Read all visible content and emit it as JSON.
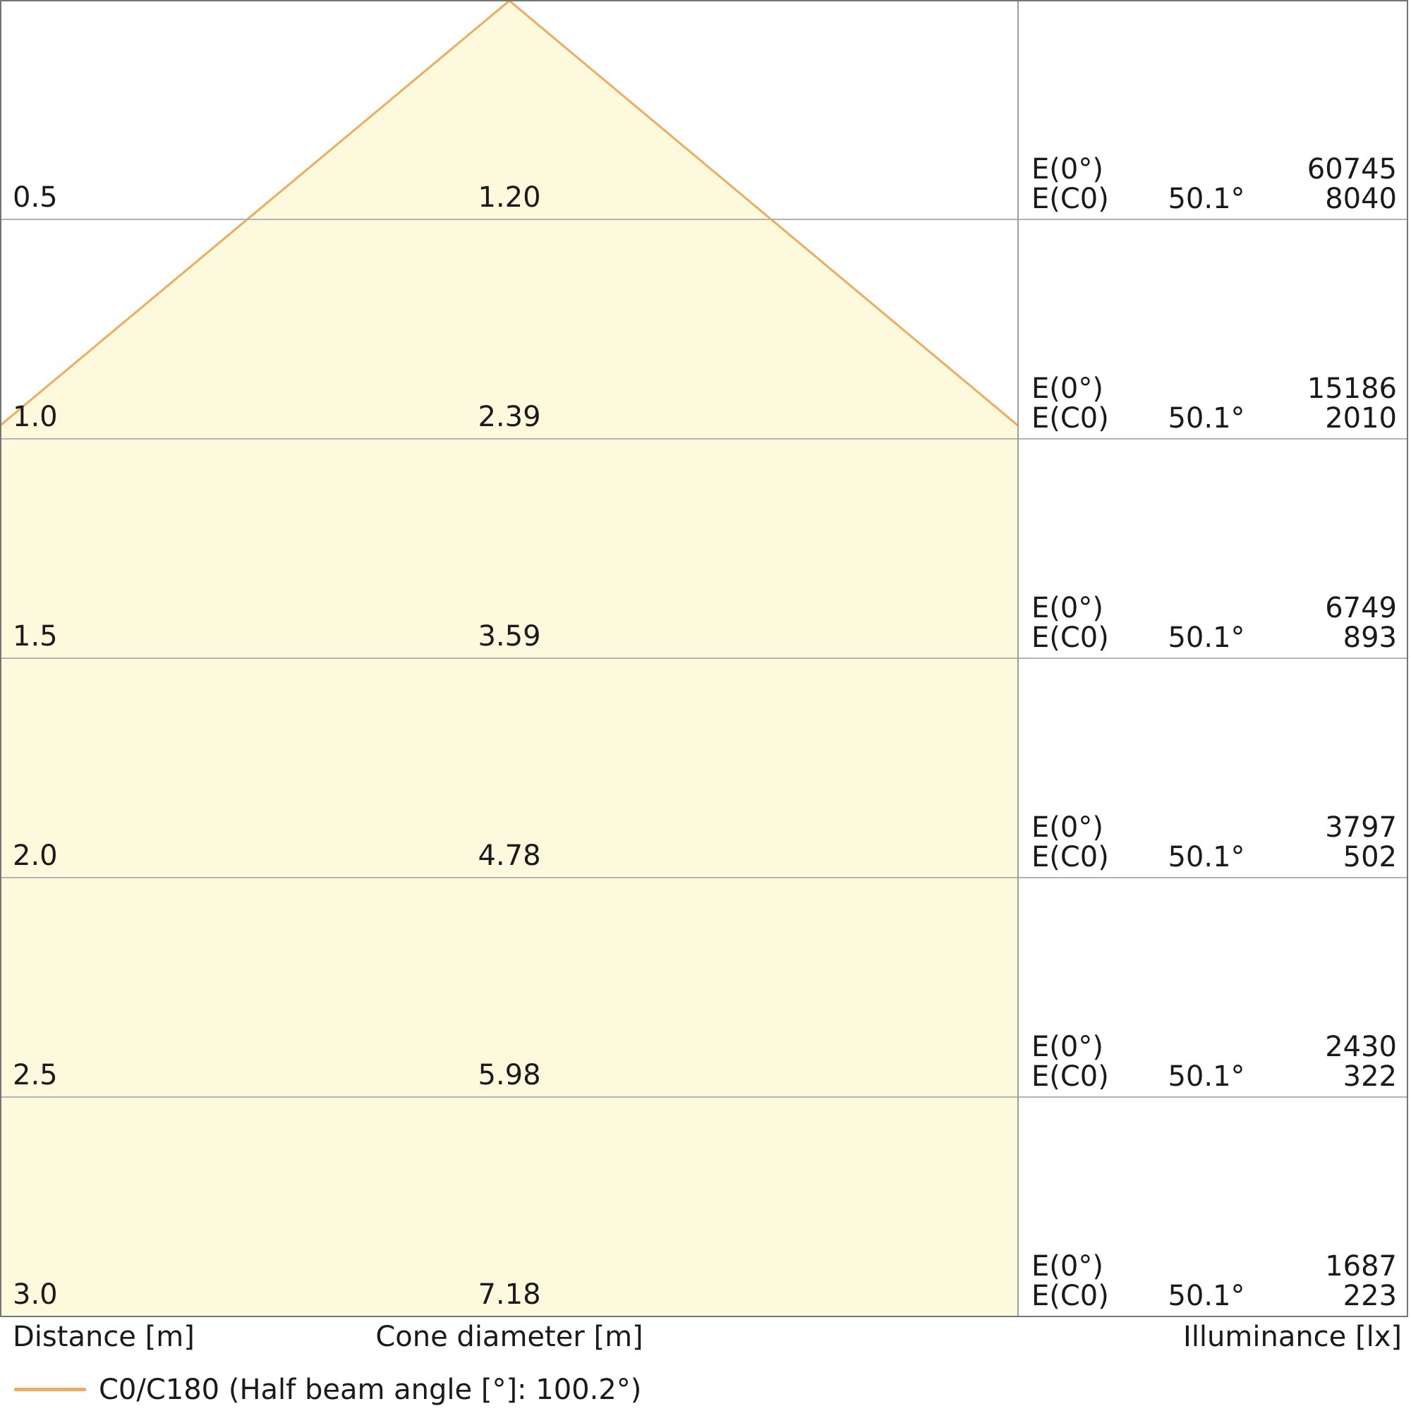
{
  "chart_data": {
    "type": "area",
    "subtype": "luminaire-light-cone-diagram",
    "legend": {
      "label": "C0/C180 (Half beam angle [°]: 100.2°)",
      "position": "bottom-left"
    },
    "half_beam_angle_deg": 100.2,
    "beam_half_angle_each_side_deg": 50.1,
    "axis_labels": {
      "distance": "Distance [m]",
      "cone_diameter": "Cone diameter [m]",
      "illuminance": "Illuminance [lx]"
    },
    "distance_range_m": [
      0,
      3.0
    ],
    "grid": true,
    "rows": [
      {
        "distance_m": 0.5,
        "distance_label": "0.5",
        "cone_diameter_m": 1.2,
        "cone_diameter_label": "1.20",
        "e0_label": "E(0°)",
        "e0_lx": 60745,
        "ec0_label": "E(C0)",
        "ec0_angle": "50.1°",
        "ec0_lx": 8040
      },
      {
        "distance_m": 1.0,
        "distance_label": "1.0",
        "cone_diameter_m": 2.39,
        "cone_diameter_label": "2.39",
        "e0_label": "E(0°)",
        "e0_lx": 15186,
        "ec0_label": "E(C0)",
        "ec0_angle": "50.1°",
        "ec0_lx": 2010
      },
      {
        "distance_m": 1.5,
        "distance_label": "1.5",
        "cone_diameter_m": 3.59,
        "cone_diameter_label": "3.59",
        "e0_label": "E(0°)",
        "e0_lx": 6749,
        "ec0_label": "E(C0)",
        "ec0_angle": "50.1°",
        "ec0_lx": 893
      },
      {
        "distance_m": 2.0,
        "distance_label": "2.0",
        "cone_diameter_m": 4.78,
        "cone_diameter_label": "4.78",
        "e0_label": "E(0°)",
        "e0_lx": 3797,
        "ec0_label": "E(C0)",
        "ec0_angle": "50.1°",
        "ec0_lx": 502
      },
      {
        "distance_m": 2.5,
        "distance_label": "2.5",
        "cone_diameter_m": 5.98,
        "cone_diameter_label": "5.98",
        "e0_label": "E(0°)",
        "e0_lx": 2430,
        "ec0_label": "E(C0)",
        "ec0_angle": "50.1°",
        "ec0_lx": 322
      },
      {
        "distance_m": 3.0,
        "distance_label": "3.0",
        "cone_diameter_m": 7.18,
        "cone_diameter_label": "7.18",
        "e0_label": "E(0°)",
        "e0_lx": 1687,
        "ec0_label": "E(C0)",
        "ec0_angle": "50.1°",
        "ec0_lx": 223
      }
    ]
  },
  "footer": {
    "distance_label": "Distance [m]",
    "cone_diameter_label": "Cone diameter [m]",
    "illuminance_label": "Illuminance [lx]",
    "legend_label": "C0/C180 (Half beam angle [°]: 100.2°)"
  },
  "colors": {
    "cone_fill": "#FCF9DC",
    "cone_edge": "#EFAC60",
    "gridline": "#B3B3B3",
    "divider": "#9C9C9C",
    "border": "#757575",
    "text": "#1A1A1A",
    "background": "#FFFFFF"
  }
}
